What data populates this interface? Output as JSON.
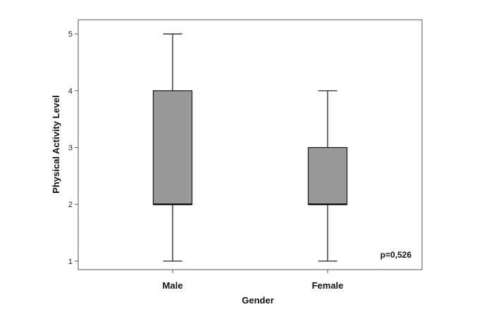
{
  "chart_data": {
    "type": "boxplot",
    "xlabel": "Gender",
    "ylabel": "Physical Activity Level",
    "ylim": [
      0.85,
      5.25
    ],
    "yticks": [
      1,
      2,
      3,
      4,
      5
    ],
    "categories": [
      "Male",
      "Female"
    ],
    "boxes": [
      {
        "category": "Male",
        "min": 1,
        "q1": 2,
        "median": 2,
        "q3": 4,
        "max": 5
      },
      {
        "category": "Female",
        "min": 1,
        "q1": 2,
        "median": 2,
        "q3": 3,
        "max": 4
      }
    ],
    "annotation": "p=0,526",
    "grid": false,
    "colors": {
      "box_fill": "#999999",
      "stroke": "#222222",
      "frame": "#555555"
    }
  }
}
